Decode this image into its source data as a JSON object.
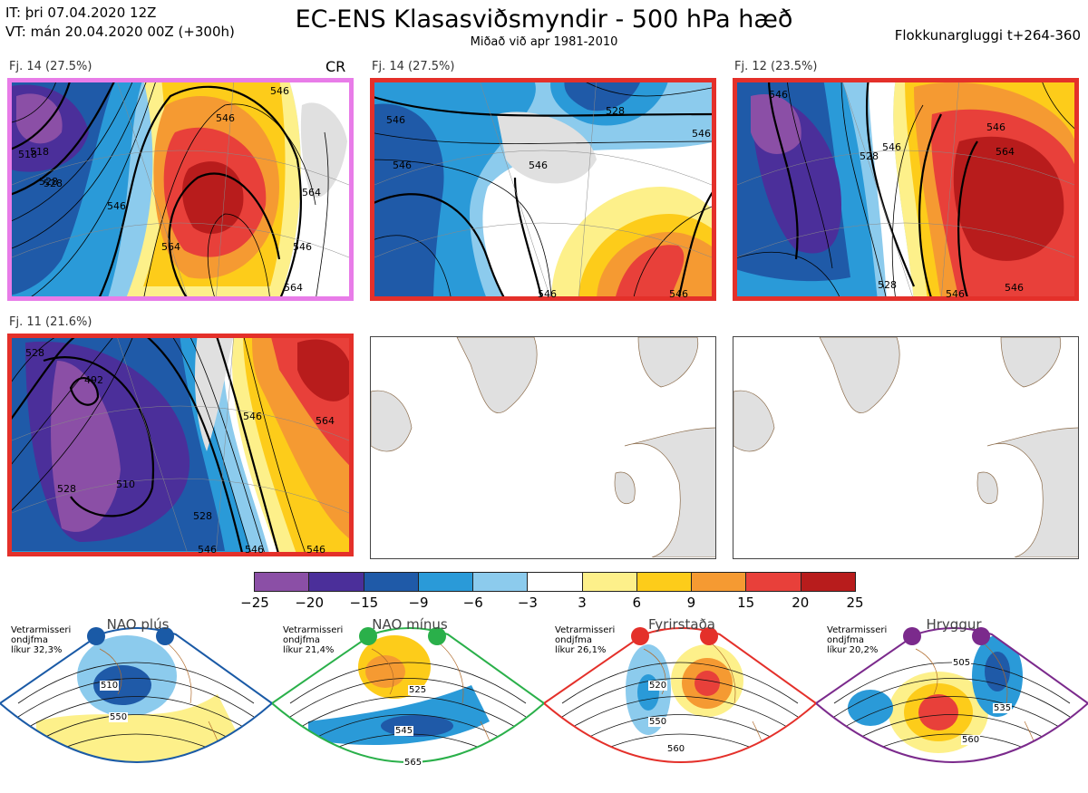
{
  "header": {
    "it_line": "IT: þri 07.04.2020 12Z",
    "vt_line": "VT: mán 20.04.2020 00Z  (+300h)",
    "title": "EC-ENS Klasasviðsmyndir - 500 hPa hæð",
    "subtitle": "Miðað við apr 1981-2010",
    "window": "Flokkunargluggi t+264-360"
  },
  "panels": [
    {
      "label": "Fj. 14 (27.5%)",
      "tag": "CR",
      "border": "#e87ce8",
      "contours": [
        "546",
        "546",
        "518",
        "528",
        "546",
        "564",
        "546",
        "564",
        "564",
        "518",
        "528"
      ]
    },
    {
      "label": "Fj. 14 (27.5%)",
      "border": "#e4302a",
      "contours": [
        "546",
        "546",
        "528",
        "546",
        "546",
        "546",
        "546"
      ]
    },
    {
      "label": "Fj. 12 (23.5%)",
      "border": "#e4302a",
      "contours": [
        "546",
        "528",
        "546",
        "564",
        "546",
        "528",
        "546",
        "546"
      ]
    },
    {
      "label": "Fj. 11 (21.6%)",
      "border": "#e4302a",
      "contours": [
        "492",
        "510",
        "528",
        "528",
        "546",
        "546",
        "564",
        "528",
        "546",
        "546"
      ]
    }
  ],
  "chart_data": {
    "type": "heatmap",
    "title": "EC-ENS Klasasviðsmyndir - 500 hPa hæð",
    "colorbar": {
      "ticks": [
        "−25",
        "−20",
        "−15",
        "−9",
        "−6",
        "−3",
        "3",
        "6",
        "9",
        "15",
        "20",
        "25"
      ],
      "colors": [
        "#8b4fa6",
        "#4b2f9a",
        "#1f5aa8",
        "#2a9ad8",
        "#8ccbed",
        "#ffffff",
        "#fdf08a",
        "#fdcc1a",
        "#f59a32",
        "#e8403a",
        "#b81c1c"
      ]
    }
  },
  "regimes": [
    {
      "name": "NAO plús",
      "info1": "Vetrarmisseri",
      "info2": "ondjfma",
      "info3": "líkur 32,3%",
      "color": "#1a5aa6",
      "labels": [
        "510",
        "550"
      ]
    },
    {
      "name": "NAO mínus",
      "info1": "Vetrarmisseri",
      "info2": "ondjfma",
      "info3": "líkur 21,4%",
      "color": "#2ab04a",
      "labels": [
        "525",
        "545",
        "565"
      ]
    },
    {
      "name": "Fyrirstaða",
      "info1": "Vetrarmisseri",
      "info2": "ondjfma",
      "info3": "líkur 26,1%",
      "color": "#e4302a",
      "labels": [
        "520",
        "550",
        "560"
      ]
    },
    {
      "name": "Hryggur",
      "info1": "Vetrarmisseri",
      "info2": "ondjfma",
      "info3": "líkur 20,2%",
      "color": "#7b2a8c",
      "labels": [
        "505",
        "535",
        "560"
      ]
    }
  ]
}
